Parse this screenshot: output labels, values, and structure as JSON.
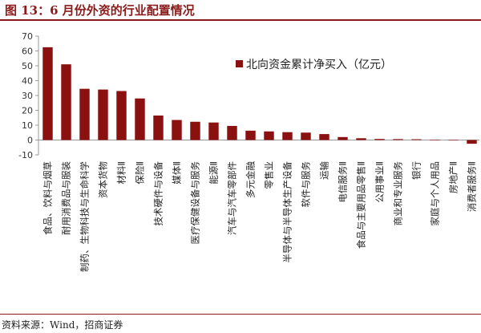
{
  "header": {
    "title": "图 13：6 月份外资的行业配置情况"
  },
  "footer": {
    "source": "资料来源：Wind，招商证券"
  },
  "colors": {
    "bar": "#8b1010",
    "accent": "#8b1a1a",
    "axis": "#999999"
  },
  "chart_data": {
    "type": "bar",
    "categories": [
      "食品、饮料与烟草",
      "耐用消费品与服装",
      "制药、生物科技与生命科学",
      "资本货物",
      "材料Ⅱ",
      "保险Ⅱ",
      "技术硬件与设备",
      "媒体Ⅱ",
      "医疗保健设备与服务",
      "能源Ⅱ",
      "汽车与汽车零部件",
      "多元金融",
      "零售业",
      "半导体与半导体生产设备",
      "软件与服务",
      "运输",
      "电信服务Ⅱ",
      "食品与主要用品零售Ⅱ",
      "公用事业Ⅱ",
      "商业和专业服务",
      "银行",
      "家庭与个人用品",
      "房地产Ⅱ",
      "消费者服务Ⅱ"
    ],
    "series": [
      {
        "name": "北向资金累计净买入（亿元）",
        "values": [
          62.5,
          51,
          34.5,
          34,
          33,
          28,
          16.5,
          13.5,
          12.3,
          11.8,
          9.5,
          6.3,
          5.8,
          5.3,
          5,
          4,
          2,
          1.2,
          0.7,
          0.6,
          0.5,
          0.2,
          -0.2,
          -2.5
        ]
      }
    ],
    "yticks": [
      "70",
      "60",
      "50",
      "40",
      "30",
      "20",
      "10",
      "0",
      "-10"
    ],
    "ylim": [
      -10,
      70
    ],
    "legend_position": "top-right",
    "grid": false
  }
}
